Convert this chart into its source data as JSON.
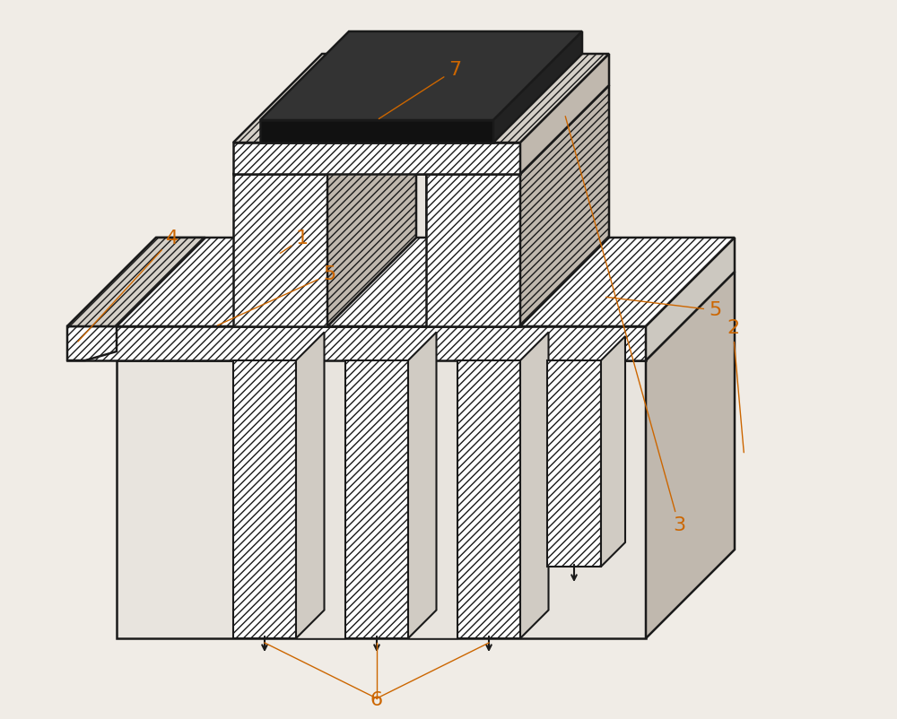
{
  "bg_color": "#f0ece6",
  "lc": "#1a1a1a",
  "hatch_lw": 0.5,
  "main_lw": 1.8,
  "figsize": [
    10.0,
    8.02
  ],
  "dpi": 100,
  "label_color": "#cc6600",
  "label_fs": 16,
  "anno_lw": 1.0
}
